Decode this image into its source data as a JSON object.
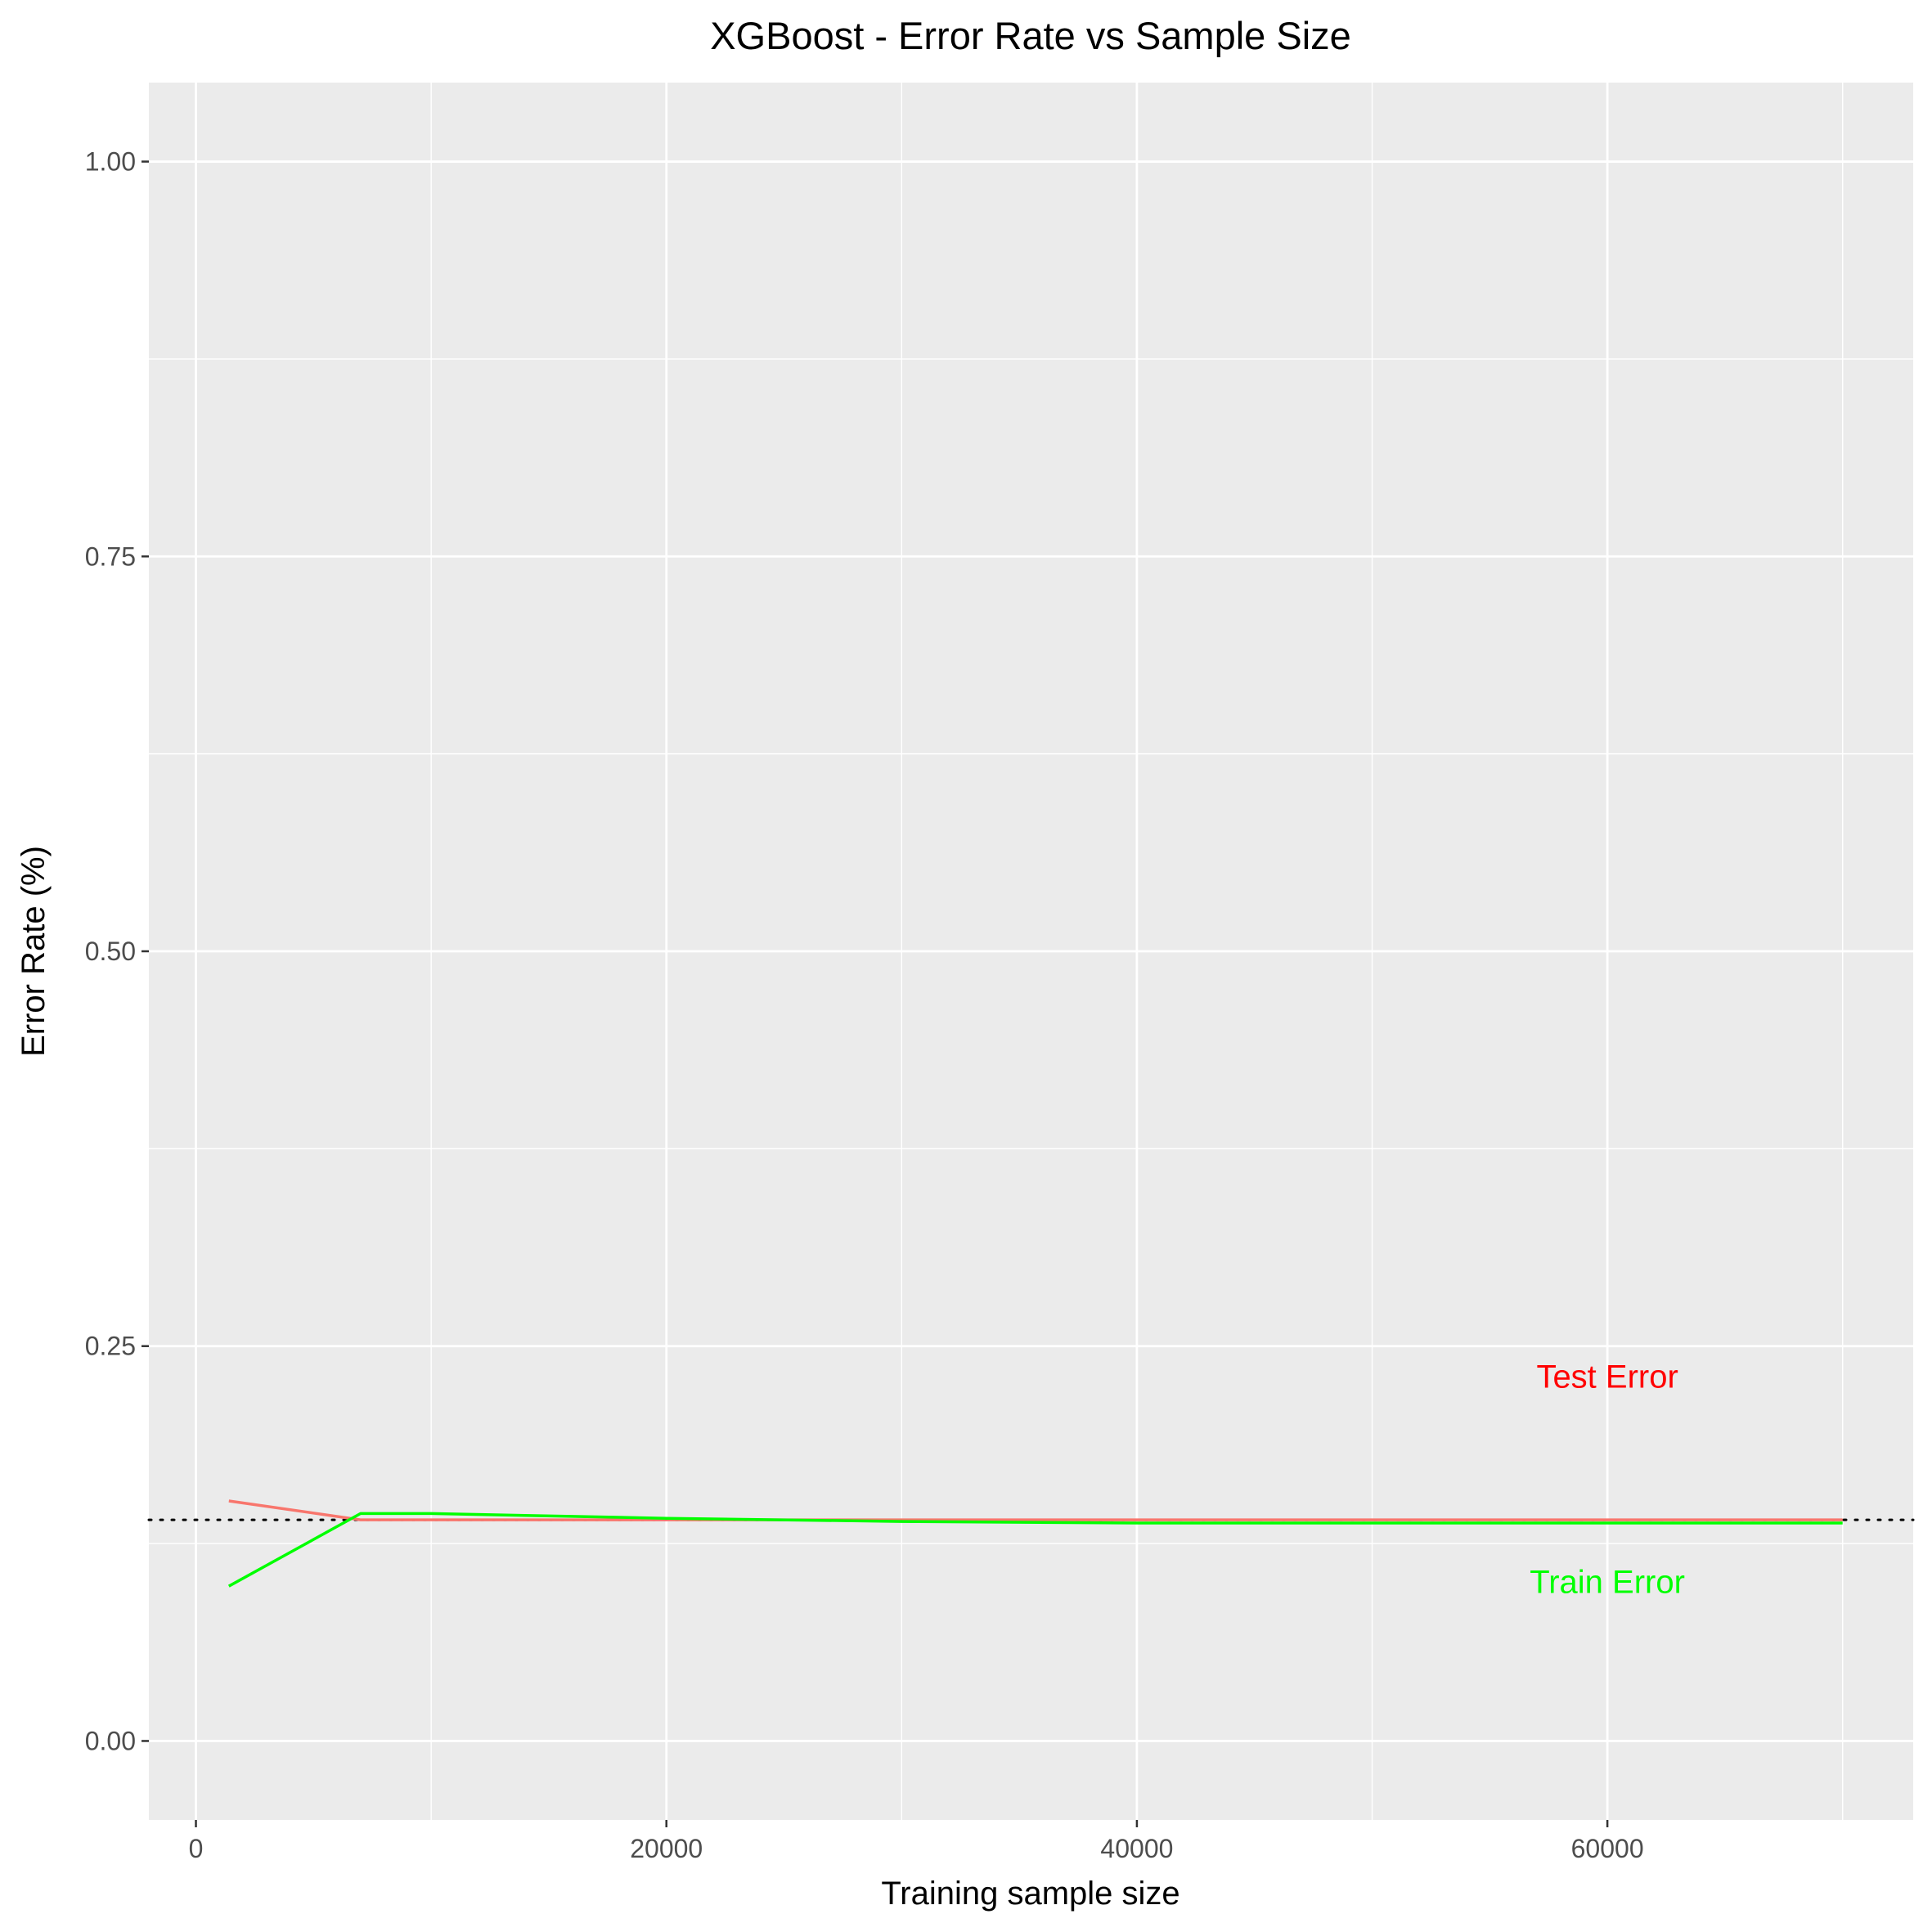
{
  "chart_data": {
    "type": "line",
    "title": "XGBoost - Error Rate vs Sample Size",
    "xlabel": "Training sample size",
    "ylabel": "Error Rate (%)",
    "xlim": [
      -2000,
      73000
    ],
    "ylim": [
      -0.05,
      1.05
    ],
    "x_ticks": [
      0,
      20000,
      40000,
      60000
    ],
    "x_tick_labels": [
      "0",
      "20000",
      "40000",
      "60000"
    ],
    "y_ticks": [
      0,
      0.25,
      0.5,
      0.75,
      1.0
    ],
    "y_tick_labels": [
      "0.00",
      "0.25",
      "0.50",
      "0.75",
      "1.00"
    ],
    "grid": true,
    "panel_background": "#EBEBEB",
    "series": [
      {
        "key": "test",
        "color": "#F8766D",
        "x": [
          1400,
          7000,
          10000,
          20000,
          30000,
          40000,
          50000,
          60000,
          70000
        ],
        "y": [
          0.152,
          0.14,
          0.14,
          0.14,
          0.14,
          0.14,
          0.14,
          0.14,
          0.14
        ]
      },
      {
        "key": "train",
        "color": "#00FF00",
        "x": [
          1400,
          7000,
          10000,
          20000,
          30000,
          40000,
          50000,
          60000,
          70000
        ],
        "y": [
          0.098,
          0.144,
          0.144,
          0.141,
          0.139,
          0.138,
          0.138,
          0.138,
          0.138
        ]
      }
    ],
    "reference_line": {
      "y": 0.14,
      "style": "dotted",
      "color": "#000000"
    },
    "annotations": [
      {
        "text": "Test Error",
        "x": 60000,
        "y": 0.231,
        "color": "#FF0000"
      },
      {
        "text": "Train Error",
        "x": 60000,
        "y": 0.101,
        "color": "#00FF00"
      }
    ]
  }
}
